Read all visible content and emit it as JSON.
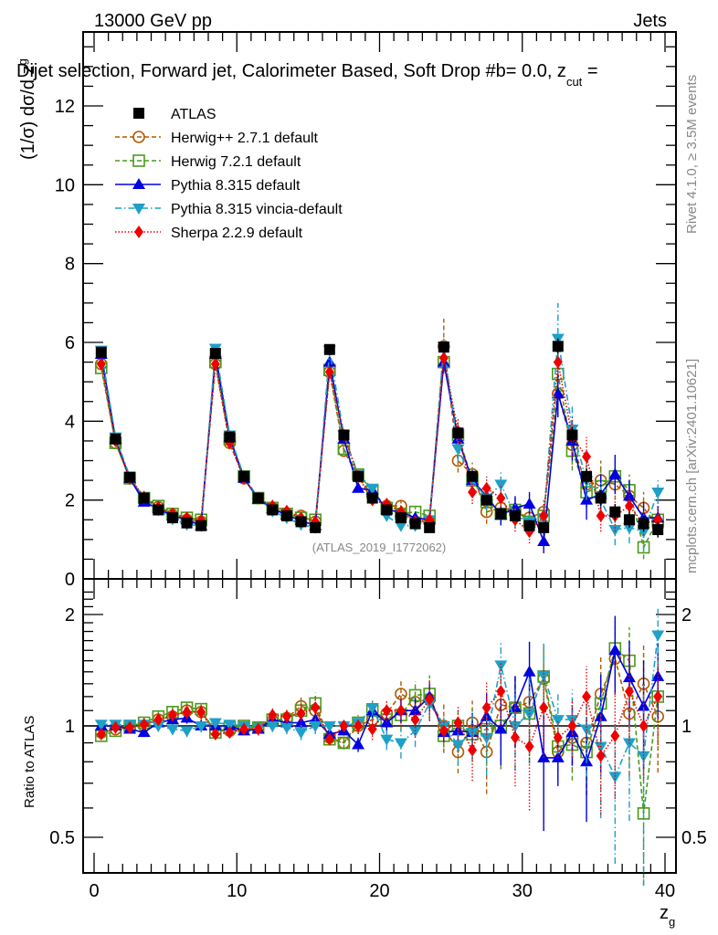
{
  "header": {
    "energy_label": "13000 GeV pp",
    "process_label": "Jets",
    "selection_title": "Dijet selection, Forward jet, Calorimeter Based, Soft Drop #b",
    "selection_tail": "= 0.0, z",
    "selection_sub": "cut",
    "selection_end": " ="
  },
  "side_labels": {
    "rivet": "Rivet 4.1.0, ≥ 3.5M events",
    "mcplots": "mcplots.cern.ch [arXiv:2401.10621]"
  },
  "watermark": "(ATLAS_2019_I1772062)",
  "chart_data": [
    {
      "type": "scatter",
      "panel": "main",
      "title": "Dijet selection, Forward jet, Calorimeter Based, Soft Drop beta = 0.0, z_cut",
      "xlabel": "z_g",
      "ylabel": "(1/σ) dσ/d z_g",
      "xlim": [
        -1,
        41
      ],
      "ylim": [
        0,
        13.8
      ],
      "yticks": [
        0,
        2,
        4,
        6,
        8,
        10,
        12
      ],
      "xticks": [
        0,
        10,
        20,
        30,
        40
      ],
      "legend_position": "top-left",
      "x": [
        0.5,
        1.5,
        2.5,
        3.5,
        4.5,
        5.5,
        6.5,
        7.5,
        8.5,
        9.5,
        10.5,
        11.5,
        12.5,
        13.5,
        14.5,
        15.5,
        16.5,
        17.5,
        18.5,
        19.5,
        20.5,
        21.5,
        22.5,
        23.5,
        24.5,
        25.5,
        26.5,
        27.5,
        28.5,
        29.5,
        30.5,
        31.5,
        32.5,
        33.5,
        34.5,
        35.5,
        36.5,
        37.5,
        38.5,
        39.5
      ],
      "series": [
        {
          "name": "ATLAS",
          "color": "#000000",
          "marker": "square-filled",
          "line": "none",
          "values": [
            5.75,
            3.55,
            2.58,
            2.05,
            1.75,
            1.55,
            1.42,
            1.35,
            5.72,
            3.6,
            2.6,
            2.05,
            1.75,
            1.6,
            1.45,
            1.3,
            5.82,
            3.65,
            2.6,
            2.05,
            1.75,
            1.55,
            1.4,
            1.3,
            5.88,
            3.7,
            2.6,
            2.0,
            1.65,
            1.6,
            1.35,
            1.3,
            5.9,
            3.65,
            2.6,
            2.05,
            1.7,
            1.5,
            1.4,
            1.25
          ],
          "errors": [
            0.04,
            0.03,
            0.03,
            0.02,
            0.02,
            0.02,
            0.02,
            0.02,
            0.05,
            0.04,
            0.03,
            0.03,
            0.03,
            0.03,
            0.03,
            0.03,
            0.07,
            0.06,
            0.05,
            0.05,
            0.05,
            0.05,
            0.05,
            0.05,
            0.12,
            0.1,
            0.1,
            0.1,
            0.1,
            0.1,
            0.1,
            0.1,
            0.2,
            0.2,
            0.2,
            0.2,
            0.2,
            0.2,
            0.2,
            0.2
          ]
        },
        {
          "name": "Herwig++ 2.7.1 default",
          "color": "#b05a00",
          "marker": "circle-open",
          "line": "dashed",
          "values": [
            5.45,
            3.45,
            2.55,
            2.05,
            1.82,
            1.62,
            1.5,
            1.45,
            5.45,
            3.45,
            2.55,
            2.05,
            1.8,
            1.65,
            1.6,
            1.45,
            5.25,
            3.25,
            2.6,
            2.1,
            1.85,
            1.85,
            1.45,
            1.45,
            5.9,
            3.0,
            2.65,
            1.7,
            1.8,
            1.7,
            1.55,
            1.7,
            4.7,
            3.4,
            2.4,
            2.5,
            2.4,
            2.1,
            1.8,
            1.35
          ],
          "errors": [
            0.05,
            0.05,
            0.05,
            0.05,
            0.05,
            0.05,
            0.05,
            0.05,
            0.08,
            0.08,
            0.06,
            0.06,
            0.06,
            0.06,
            0.08,
            0.08,
            0.1,
            0.1,
            0.1,
            0.1,
            0.1,
            0.12,
            0.12,
            0.15,
            0.7,
            0.3,
            0.3,
            0.3,
            0.3,
            0.3,
            0.3,
            0.3,
            0.6,
            0.5,
            0.5,
            0.5,
            0.4,
            0.4,
            0.4,
            0.3
          ]
        },
        {
          "name": "Herwig 7.2.1 default",
          "color": "#4a9a1c",
          "marker": "square-open",
          "line": "dashed",
          "values": [
            5.35,
            3.45,
            2.55,
            2.05,
            1.85,
            1.65,
            1.55,
            1.5,
            5.5,
            3.55,
            2.6,
            2.05,
            1.8,
            1.65,
            1.55,
            1.5,
            5.3,
            3.3,
            2.65,
            2.25,
            1.8,
            1.65,
            1.7,
            1.6,
            5.5,
            3.65,
            2.5,
            1.95,
            1.65,
            1.75,
            1.45,
            1.6,
            5.2,
            3.25,
            2.2,
            2.35,
            2.6,
            2.25,
            0.8,
            1.5
          ],
          "errors": [
            0.05,
            0.05,
            0.05,
            0.05,
            0.05,
            0.05,
            0.05,
            0.05,
            0.08,
            0.08,
            0.06,
            0.06,
            0.06,
            0.06,
            0.08,
            0.08,
            0.1,
            0.1,
            0.1,
            0.1,
            0.1,
            0.12,
            0.12,
            0.15,
            0.3,
            0.3,
            0.3,
            0.3,
            0.3,
            0.3,
            0.3,
            0.3,
            0.5,
            0.5,
            0.4,
            0.4,
            0.4,
            0.4,
            0.3,
            0.3
          ]
        },
        {
          "name": "Pythia 8.315 default",
          "color": "#0000e0",
          "marker": "triangle-up",
          "line": "solid",
          "values": [
            5.7,
            3.55,
            2.55,
            1.95,
            1.78,
            1.6,
            1.5,
            1.35,
            5.7,
            3.6,
            2.55,
            2.02,
            1.78,
            1.62,
            1.48,
            1.35,
            5.5,
            3.55,
            2.3,
            2.25,
            1.75,
            1.7,
            1.55,
            1.5,
            5.5,
            3.55,
            2.5,
            2.1,
            1.62,
            1.8,
            1.9,
            0.95,
            4.7,
            3.5,
            2.0,
            2.15,
            2.65,
            2.1,
            1.55,
            1.55
          ],
          "errors": [
            0.04,
            0.04,
            0.04,
            0.04,
            0.04,
            0.04,
            0.04,
            0.04,
            0.06,
            0.06,
            0.05,
            0.05,
            0.05,
            0.05,
            0.05,
            0.05,
            0.08,
            0.08,
            0.08,
            0.08,
            0.08,
            0.1,
            0.1,
            0.1,
            0.25,
            0.25,
            0.25,
            0.25,
            0.25,
            0.3,
            0.3,
            0.3,
            0.6,
            0.5,
            0.5,
            0.5,
            0.5,
            0.4,
            0.4,
            0.3
          ]
        },
        {
          "name": "Pythia 8.315 vincia-default",
          "color": "#1ea0c8",
          "marker": "triangle-down",
          "line": "dash-dot",
          "values": [
            5.8,
            3.6,
            2.6,
            2.05,
            1.75,
            1.52,
            1.38,
            1.35,
            5.85,
            3.65,
            2.6,
            2.05,
            1.72,
            1.55,
            1.38,
            1.3,
            5.8,
            3.65,
            2.65,
            2.3,
            1.6,
            1.35,
            1.35,
            1.5,
            5.9,
            3.3,
            2.5,
            2.05,
            2.4,
            1.6,
            1.45,
            1.55,
            6.1,
            3.8,
            2.5,
            2.0,
            1.25,
            1.3,
            1.2,
            2.2
          ],
          "errors": [
            0.04,
            0.04,
            0.04,
            0.04,
            0.04,
            0.04,
            0.04,
            0.04,
            0.06,
            0.06,
            0.05,
            0.05,
            0.05,
            0.05,
            0.05,
            0.05,
            0.08,
            0.08,
            0.08,
            0.08,
            0.08,
            0.1,
            0.1,
            0.1,
            0.3,
            0.3,
            0.3,
            0.3,
            0.3,
            0.3,
            0.3,
            0.3,
            0.9,
            0.6,
            0.5,
            0.5,
            0.4,
            0.4,
            0.5,
            0.3
          ]
        },
        {
          "name": "Sherpa 2.2.9 default",
          "color": "#ee0000",
          "marker": "diamond",
          "line": "dotted",
          "values": [
            5.45,
            3.5,
            2.55,
            2.08,
            1.82,
            1.65,
            1.55,
            1.48,
            5.45,
            3.45,
            2.55,
            2.05,
            1.85,
            1.72,
            1.55,
            1.45,
            5.25,
            3.65,
            2.6,
            2.0,
            1.9,
            1.7,
            1.45,
            1.5,
            5.6,
            3.75,
            2.2,
            2.3,
            2.05,
            1.5,
            1.2,
            1.6,
            5.5,
            3.6,
            3.1,
            1.6,
            1.6,
            1.85,
            1.4,
            1.5
          ],
          "errors": [
            0.05,
            0.05,
            0.05,
            0.05,
            0.05,
            0.05,
            0.05,
            0.05,
            0.08,
            0.08,
            0.06,
            0.06,
            0.06,
            0.06,
            0.08,
            0.08,
            0.1,
            0.1,
            0.1,
            0.1,
            0.1,
            0.12,
            0.12,
            0.15,
            0.3,
            0.3,
            0.3,
            0.3,
            0.3,
            0.3,
            0.3,
            0.3,
            0.5,
            0.5,
            0.5,
            0.4,
            0.4,
            0.4,
            0.3,
            0.3
          ]
        }
      ]
    },
    {
      "type": "scatter",
      "panel": "ratio",
      "xlabel": "z_g",
      "ylabel": "Ratio to ATLAS",
      "yscale": "log",
      "ylim": [
        0.36,
        2.4
      ],
      "yticks": [
        0.5,
        1,
        2
      ],
      "xlim": [
        -1,
        41
      ],
      "xticks": [
        0,
        10,
        20,
        30,
        40
      ],
      "reference_line": 1,
      "series": [
        {
          "name": "Herwig++ 2.7.1 default",
          "values": [
            0.96,
            0.98,
            0.99,
            1.0,
            1.04,
            1.06,
            1.1,
            1.09,
            0.97,
            0.97,
            0.98,
            0.99,
            1.03,
            1.05,
            1.13,
            1.1,
            0.93,
            0.9,
            1.0,
            1.04,
            1.08,
            1.22,
            1.16,
            1.18,
            1.0,
            0.85,
            1.02,
            0.85,
            1.14,
            1.12,
            1.16,
            1.34,
            0.85,
            0.93,
            0.9,
            1.22,
            1.52,
            1.08,
            1.3,
            1.06
          ]
        },
        {
          "name": "Herwig 7.2.1 default",
          "values": [
            0.94,
            0.97,
            1.0,
            1.02,
            1.06,
            1.09,
            1.12,
            1.11,
            0.96,
            0.99,
            1.0,
            0.99,
            1.04,
            1.04,
            1.1,
            1.15,
            0.92,
            0.9,
            1.02,
            1.1,
            1.04,
            1.07,
            1.21,
            1.22,
            0.94,
            1.0,
            0.95,
            0.98,
            1.0,
            1.12,
            1.08,
            1.36,
            0.88,
            0.89,
            0.85,
            1.15,
            1.62,
            1.5,
            0.58,
            1.2
          ]
        },
        {
          "name": "Pythia 8.315 default",
          "values": [
            1.0,
            1.0,
            0.98,
            0.96,
            1.02,
            1.04,
            1.05,
            1.0,
            1.0,
            1.0,
            0.97,
            0.98,
            1.04,
            1.02,
            1.02,
            1.04,
            0.95,
            0.97,
            0.89,
            1.1,
            1.02,
            1.1,
            1.1,
            1.2,
            0.96,
            0.97,
            0.96,
            1.06,
            0.98,
            1.12,
            1.4,
            0.82,
            0.82,
            0.96,
            0.8,
            1.06,
            1.6,
            1.35,
            1.13,
            1.36
          ]
        },
        {
          "name": "Pythia 8.315 vincia-default",
          "values": [
            1.01,
            1.01,
            1.01,
            1.01,
            1.0,
            0.98,
            0.97,
            1.0,
            1.02,
            1.01,
            1.0,
            0.99,
            1.0,
            0.99,
            0.96,
            1.0,
            1.0,
            1.0,
            1.02,
            1.12,
            0.92,
            0.9,
            0.97,
            1.15,
            1.0,
            0.89,
            0.96,
            0.93,
            1.46,
            1.0,
            1.08,
            1.37,
            1.04,
            1.04,
            0.98,
            0.88,
            0.73,
            0.9,
            0.83,
            1.76
          ]
        },
        {
          "name": "Sherpa 2.2.9 default",
          "values": [
            0.95,
            0.99,
            0.99,
            1.01,
            1.04,
            1.07,
            1.09,
            1.09,
            0.95,
            0.96,
            0.98,
            0.98,
            1.07,
            1.06,
            1.08,
            1.12,
            0.92,
            1.0,
            1.0,
            0.98,
            1.1,
            1.1,
            1.04,
            1.18,
            0.97,
            1.02,
            0.86,
            1.12,
            1.24,
            0.93,
            0.88,
            1.12,
            0.93,
            1.0,
            1.2,
            0.83,
            0.94,
            1.24,
            1.0,
            1.2
          ]
        }
      ]
    }
  ]
}
